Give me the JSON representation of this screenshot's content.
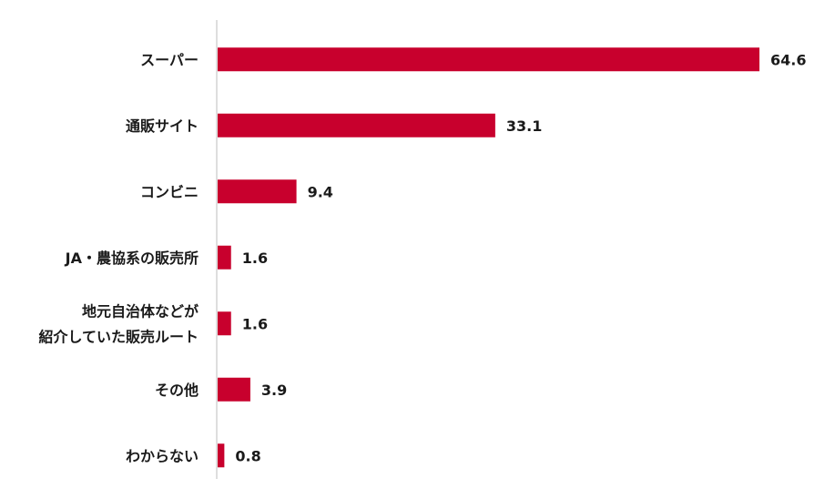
{
  "chart_data": {
    "type": "bar",
    "orientation": "horizontal",
    "categories": [
      [
        "スーパー"
      ],
      [
        "通販サイト"
      ],
      [
        "コンビニ"
      ],
      [
        "JA・農協系の販売所"
      ],
      [
        "地元自治体などが",
        "紹介していた販売ルート"
      ],
      [
        "その他"
      ],
      [
        "わからない"
      ]
    ],
    "values": [
      64.6,
      33.1,
      9.4,
      1.6,
      1.6,
      3.9,
      0.8
    ],
    "value_labels": [
      "64.6",
      "33.1",
      "9.4",
      "1.6",
      "1.6",
      "3.9",
      "0.8"
    ],
    "xlim": [
      0,
      65
    ],
    "grid": false,
    "legend": "none",
    "colors": {
      "bar": "#c8002d",
      "axis": "#c8c8c8",
      "text": "#1a1a1a"
    }
  }
}
